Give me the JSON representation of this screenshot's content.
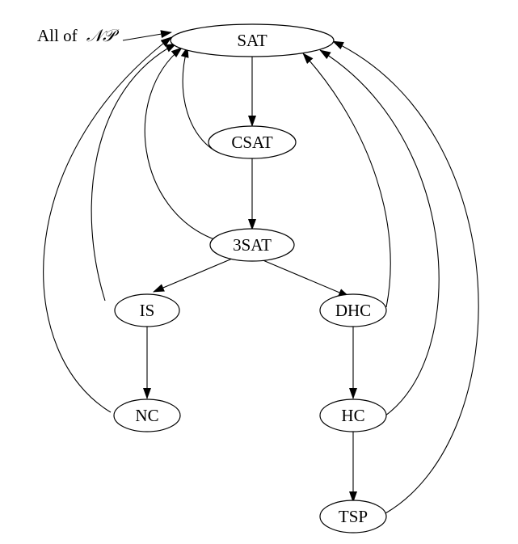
{
  "diagram": {
    "title_prefix": "All of",
    "title_class": "𝒩𝒫",
    "nodes": {
      "sat": "SAT",
      "csat": "CSAT",
      "3sat": "3SAT",
      "is": "IS",
      "dhc": "DHC",
      "nc": "NC",
      "hc": "HC",
      "tsp": "TSP"
    },
    "edges": [
      {
        "from": "All of NP",
        "to": "SAT"
      },
      {
        "from": "SAT",
        "to": "CSAT"
      },
      {
        "from": "CSAT",
        "to": "SAT"
      },
      {
        "from": "CSAT",
        "to": "3SAT"
      },
      {
        "from": "3SAT",
        "to": "SAT"
      },
      {
        "from": "3SAT",
        "to": "IS"
      },
      {
        "from": "3SAT",
        "to": "DHC"
      },
      {
        "from": "IS",
        "to": "SAT"
      },
      {
        "from": "IS",
        "to": "NC"
      },
      {
        "from": "NC",
        "to": "SAT"
      },
      {
        "from": "DHC",
        "to": "SAT"
      },
      {
        "from": "DHC",
        "to": "HC"
      },
      {
        "from": "HC",
        "to": "SAT"
      },
      {
        "from": "HC",
        "to": "TSP"
      },
      {
        "from": "TSP",
        "to": "SAT"
      }
    ],
    "colors": {
      "stroke": "#000000",
      "fill": "#ffffff"
    }
  }
}
